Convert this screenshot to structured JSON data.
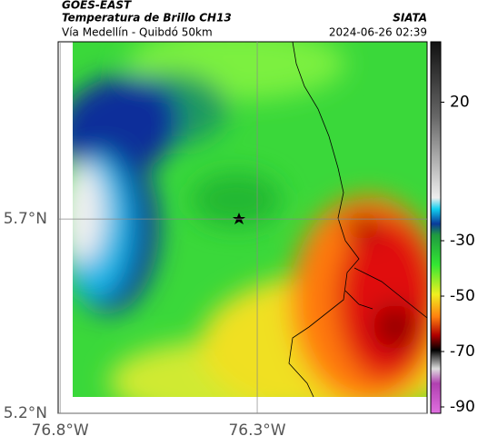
{
  "header": {
    "source": "GOES-EAST",
    "title": "Temperatura de Brillo CH13",
    "org": "SIATA",
    "subtitle": "Vía Medellín - Quibdó 50km",
    "datetime": "2024-06-26 02:39"
  },
  "map": {
    "xlim": [
      -76.805,
      -75.869
    ],
    "ylim": [
      5.2,
      6.156
    ],
    "xticks": [
      {
        "value": -76.8,
        "label": "76.8°W"
      },
      {
        "value": -76.3,
        "label": "76.3°W"
      }
    ],
    "yticks": [
      {
        "value": 5.7,
        "label": "5.7°N"
      },
      {
        "value": 5.2,
        "label": "5.2°N"
      }
    ],
    "grid": true
  },
  "colorbar": {
    "lim": [
      -92.3,
      41.8
    ],
    "ticks": [
      20,
      -30,
      -50,
      -70,
      -90
    ]
  }
}
